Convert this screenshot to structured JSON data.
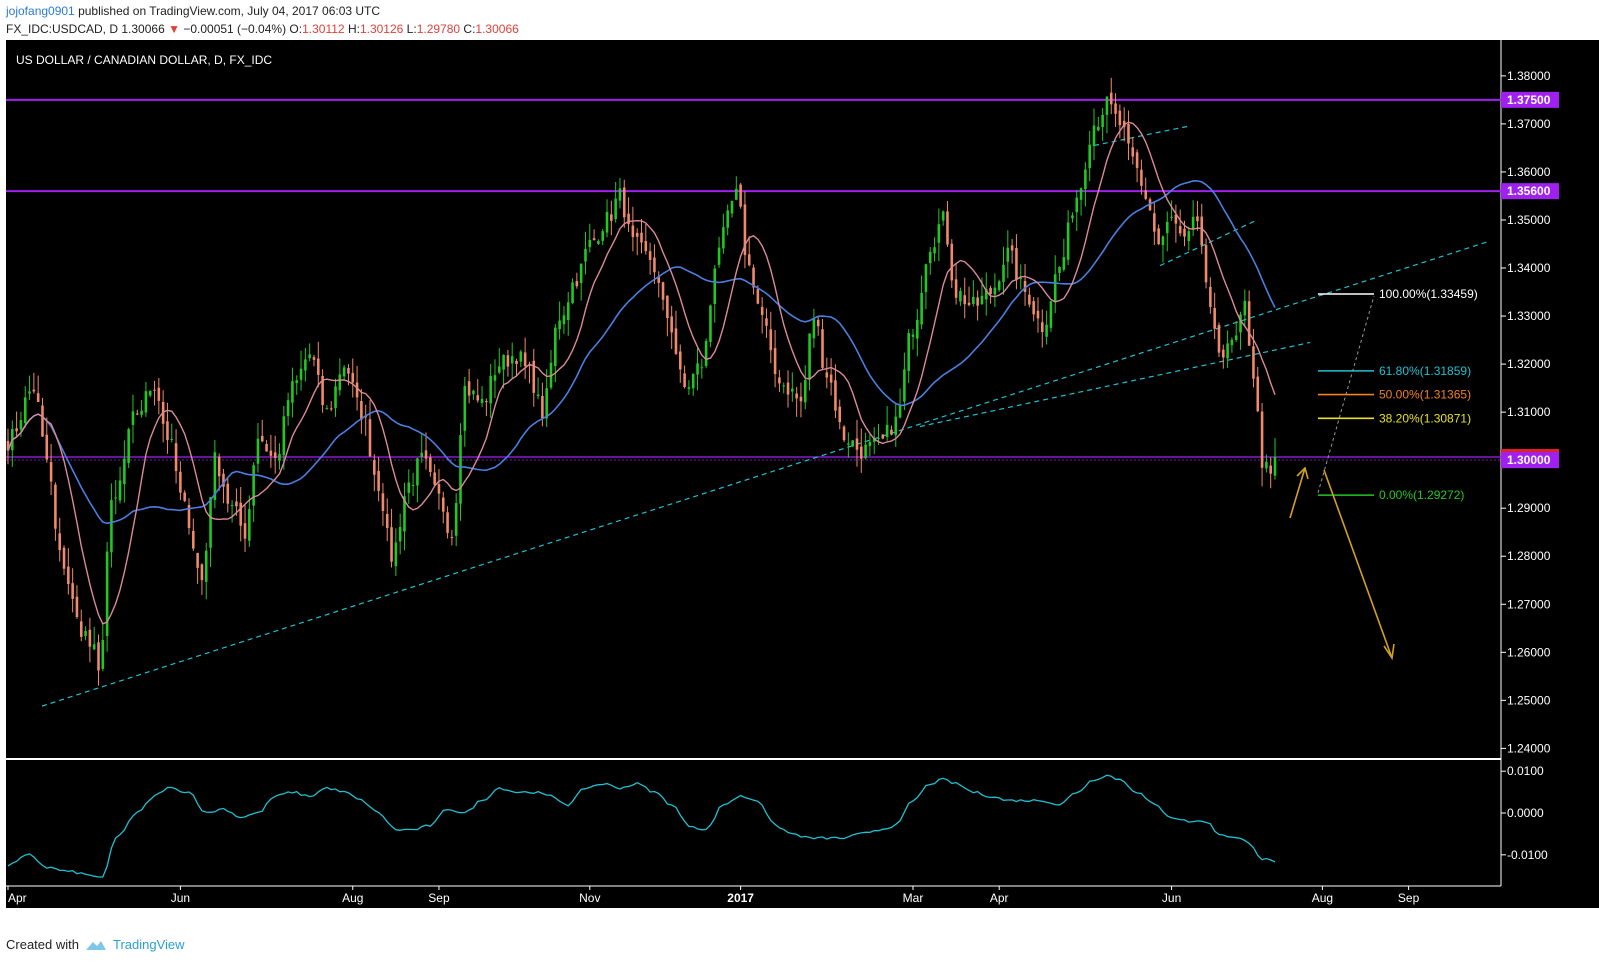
{
  "header": {
    "user": "jojofang0901",
    "published": "published on TradingView.com, July 04, 2017 06:03 UTC",
    "symbol": "FX_IDC:USDCAD, D",
    "last": "1.30066",
    "change_arrow": "▼",
    "change": "−0.00051 (−0.04%)",
    "o_label": "O:",
    "o": "1.30112",
    "h_label": "H:",
    "h": "1.30126",
    "l_label": "L:",
    "l": "1.29780",
    "c_label": "C:",
    "c": "1.30066"
  },
  "footer": {
    "created_with": "Created with",
    "brand": "TradingView"
  },
  "colors": {
    "background": "#000000",
    "up": "#22c822",
    "down": "#f08a6a",
    "ma_fast": "#d98a9a",
    "ma_slow": "#4a7fe0",
    "purple": "#a020f0",
    "trend": "#20c0d0",
    "oscillator": "#20c0d0",
    "arrow": "#d4a020"
  },
  "chart_data": {
    "type": "candlestick",
    "title": "US DOLLAR / CANADIAN DOLLAR, D, FX_IDC",
    "x_months": [
      "Apr",
      "Jun",
      "Aug",
      "Sep",
      "Nov",
      "2017",
      "Mar",
      "Apr",
      "Jun",
      "Aug",
      "Sep"
    ],
    "x_month_index": [
      0,
      40,
      80,
      100,
      135,
      170,
      210,
      230,
      270,
      305,
      325
    ],
    "ylim": [
      1.238,
      1.3858
    ],
    "y_ticks": [
      "1.38000",
      "1.37000",
      "1.36000",
      "1.35000",
      "1.34000",
      "1.33000",
      "1.32000",
      "1.31000",
      "1.30000",
      "1.29000",
      "1.28000",
      "1.27000",
      "1.26000",
      "1.25000",
      "1.24000"
    ],
    "y_tick_values": [
      1.38,
      1.37,
      1.36,
      1.35,
      1.34,
      1.33,
      1.32,
      1.31,
      1.3,
      1.29,
      1.28,
      1.27,
      1.26,
      1.25,
      1.24
    ],
    "close_anchors": [
      [
        0,
        1.304
      ],
      [
        6,
        1.315
      ],
      [
        9,
        1.3
      ],
      [
        12,
        1.28
      ],
      [
        17,
        1.265
      ],
      [
        20,
        1.26
      ],
      [
        21,
        1.255
      ],
      [
        24,
        1.29
      ],
      [
        30,
        1.31
      ],
      [
        34,
        1.316
      ],
      [
        37,
        1.305
      ],
      [
        41,
        1.29
      ],
      [
        45,
        1.275
      ],
      [
        48,
        1.3
      ],
      [
        52,
        1.29
      ],
      [
        55,
        1.285
      ],
      [
        58,
        1.305
      ],
      [
        62,
        1.3
      ],
      [
        66,
        1.315
      ],
      [
        70,
        1.322
      ],
      [
        74,
        1.31
      ],
      [
        78,
        1.32
      ],
      [
        82,
        1.31
      ],
      [
        86,
        1.295
      ],
      [
        89,
        1.28
      ],
      [
        93,
        1.295
      ],
      [
        96,
        1.3
      ],
      [
        100,
        1.292
      ],
      [
        103,
        1.285
      ],
      [
        106,
        1.315
      ],
      [
        110,
        1.312
      ],
      [
        114,
        1.32
      ],
      [
        118,
        1.322
      ],
      [
        121,
        1.318
      ],
      [
        124,
        1.31
      ],
      [
        128,
        1.33
      ],
      [
        132,
        1.338
      ],
      [
        135,
        1.345
      ],
      [
        139,
        1.35
      ],
      [
        142,
        1.355
      ],
      [
        145,
        1.345
      ],
      [
        149,
        1.342
      ],
      [
        153,
        1.33
      ],
      [
        157,
        1.315
      ],
      [
        161,
        1.32
      ],
      [
        165,
        1.345
      ],
      [
        169,
        1.355
      ],
      [
        172,
        1.34
      ],
      [
        175,
        1.33
      ],
      [
        178,
        1.318
      ],
      [
        181,
        1.315
      ],
      [
        184,
        1.312
      ],
      [
        187,
        1.33
      ],
      [
        190,
        1.318
      ],
      [
        194,
        1.305
      ],
      [
        198,
        1.302
      ],
      [
        202,
        1.303
      ],
      [
        206,
        1.308
      ],
      [
        210,
        1.328
      ],
      [
        214,
        1.345
      ],
      [
        217,
        1.35
      ],
      [
        220,
        1.335
      ],
      [
        224,
        1.332
      ],
      [
        228,
        1.335
      ],
      [
        232,
        1.343
      ],
      [
        236,
        1.335
      ],
      [
        240,
        1.328
      ],
      [
        244,
        1.34
      ],
      [
        248,
        1.355
      ],
      [
        252,
        1.37
      ],
      [
        255,
        1.374
      ],
      [
        258,
        1.37
      ],
      [
        261,
        1.362
      ],
      [
        264,
        1.355
      ],
      [
        267,
        1.345
      ],
      [
        270,
        1.35
      ],
      [
        273,
        1.345
      ],
      [
        276,
        1.35
      ],
      [
        279,
        1.33
      ],
      [
        282,
        1.322
      ],
      [
        285,
        1.325
      ],
      [
        287,
        1.332
      ],
      [
        289,
        1.318
      ],
      [
        291,
        1.3
      ],
      [
        293,
        1.296
      ],
      [
        294,
        1.3007
      ]
    ],
    "num_bars": 295,
    "ma_fast_period": 10,
    "ma_slow_period": 30,
    "horizontal_levels": [
      {
        "label": "1.37500",
        "value": 1.375
      },
      {
        "label": "1.35600",
        "value": 1.356
      }
    ],
    "current_price": {
      "label": "1.30066",
      "value": 1.30066
    },
    "round_level": {
      "label": "1.30000",
      "value": 1.3
    },
    "fibonacci": [
      {
        "label": "100.00%(1.33459)",
        "value": 1.33459,
        "color": "#ffffff"
      },
      {
        "label": "61.80%(1.31859)",
        "value": 1.31859,
        "color": "#20c0d0"
      },
      {
        "label": "50.00%(1.31365)",
        "value": 1.31365,
        "color": "#f08020"
      },
      {
        "label": "38.20%(1.30871)",
        "value": 1.30871,
        "color": "#e8e020"
      },
      {
        "label": "0.00%(1.29272)",
        "value": 1.29272,
        "color": "#22c822"
      }
    ],
    "oscillator": {
      "ylim": [
        -0.0165,
        0.0122
      ],
      "y_ticks": [
        "0.0100",
        "0.0000",
        "-0.0100"
      ],
      "y_tick_values": [
        0.01,
        0.0,
        -0.01
      ],
      "anchors": [
        [
          0,
          -0.0125
        ],
        [
          5,
          -0.01
        ],
        [
          9,
          -0.013
        ],
        [
          14,
          -0.014
        ],
        [
          20,
          -0.015
        ],
        [
          22,
          -0.0155
        ],
        [
          25,
          -0.006
        ],
        [
          30,
          0.0
        ],
        [
          34,
          0.004
        ],
        [
          37,
          0.006
        ],
        [
          42,
          0.005
        ],
        [
          46,
          0.0
        ],
        [
          50,
          0.001
        ],
        [
          54,
          -0.001
        ],
        [
          58,
          0.0
        ],
        [
          62,
          0.004
        ],
        [
          66,
          0.005
        ],
        [
          70,
          0.004
        ],
        [
          74,
          0.006
        ],
        [
          78,
          0.005
        ],
        [
          82,
          0.003
        ],
        [
          86,
          0.0
        ],
        [
          90,
          -0.004
        ],
        [
          94,
          -0.004
        ],
        [
          98,
          -0.003
        ],
        [
          102,
          0.001
        ],
        [
          106,
          0.0
        ],
        [
          110,
          0.003
        ],
        [
          114,
          0.006
        ],
        [
          118,
          0.005
        ],
        [
          122,
          0.005
        ],
        [
          126,
          0.004
        ],
        [
          130,
          0.002
        ],
        [
          134,
          0.006
        ],
        [
          138,
          0.007
        ],
        [
          142,
          0.006
        ],
        [
          146,
          0.007
        ],
        [
          150,
          0.005
        ],
        [
          154,
          0.002
        ],
        [
          158,
          -0.003
        ],
        [
          162,
          -0.004
        ],
        [
          166,
          0.002
        ],
        [
          170,
          0.004
        ],
        [
          174,
          0.003
        ],
        [
          178,
          -0.003
        ],
        [
          182,
          -0.005
        ],
        [
          186,
          -0.006
        ],
        [
          190,
          -0.006
        ],
        [
          194,
          -0.006
        ],
        [
          198,
          -0.005
        ],
        [
          202,
          -0.004
        ],
        [
          206,
          -0.003
        ],
        [
          210,
          0.003
        ],
        [
          214,
          0.007
        ],
        [
          217,
          0.008
        ],
        [
          220,
          0.007
        ],
        [
          224,
          0.005
        ],
        [
          228,
          0.004
        ],
        [
          232,
          0.003
        ],
        [
          236,
          0.003
        ],
        [
          240,
          0.003
        ],
        [
          244,
          0.002
        ],
        [
          248,
          0.005
        ],
        [
          252,
          0.008
        ],
        [
          255,
          0.009
        ],
        [
          258,
          0.008
        ],
        [
          262,
          0.005
        ],
        [
          266,
          0.002
        ],
        [
          270,
          -0.001
        ],
        [
          274,
          -0.002
        ],
        [
          278,
          -0.002
        ],
        [
          281,
          -0.005
        ],
        [
          285,
          -0.006
        ],
        [
          288,
          -0.007
        ],
        [
          291,
          -0.011
        ],
        [
          294,
          -0.0115
        ]
      ]
    }
  }
}
